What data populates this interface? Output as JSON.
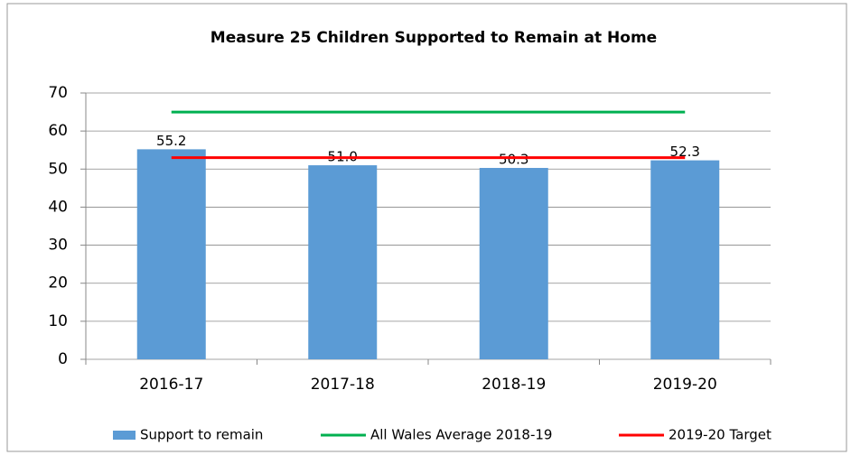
{
  "chart_data": {
    "type": "bar",
    "title": "Measure 25 Children Supported to Remain at Home",
    "categories": [
      "2016-17",
      "2017-18",
      "2018-19",
      "2019-20"
    ],
    "series": [
      {
        "name": "Support to remain",
        "type": "bar",
        "color": "#5b9bd5",
        "values": [
          55.2,
          51.0,
          50.3,
          52.3
        ],
        "value_labels": [
          "55.2",
          "51.0",
          "50.3",
          "52.3"
        ]
      },
      {
        "name": "All Wales Average 2018-19",
        "type": "line",
        "color": "#00b050",
        "values": [
          65,
          65,
          65,
          65
        ]
      },
      {
        "name": "2019-20 Target",
        "type": "line",
        "color": "#ff0000",
        "values": [
          53,
          53,
          53,
          53
        ]
      }
    ],
    "ylim": [
      0,
      70
    ],
    "yticks": [
      0,
      10,
      20,
      30,
      40,
      50,
      60,
      70
    ],
    "grid": true,
    "legend": "bottom"
  }
}
